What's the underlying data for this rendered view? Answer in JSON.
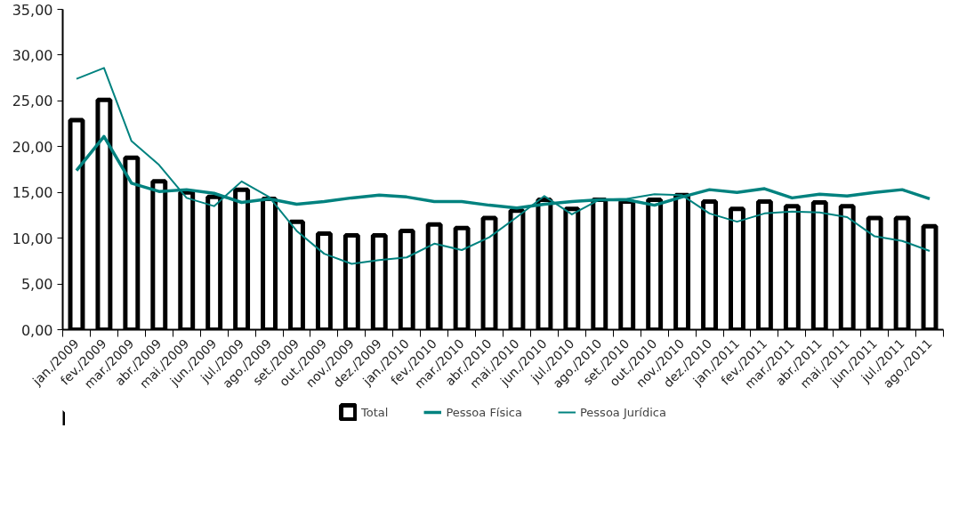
{
  "chart_data": {
    "type": "bar",
    "categories": [
      "jan./2009",
      "fev./2009",
      "mar./2009",
      "abr./2009",
      "mai./2009",
      "jun./2009",
      "jul./2009",
      "ago./2009",
      "set./2009",
      "out./2009",
      "nov./2009",
      "dez./2009",
      "jan./2010",
      "fev./2010",
      "mar./2010",
      "abr./2010",
      "mai./2010",
      "jun./2010",
      "jul./2010",
      "ago./2010",
      "set./2010",
      "out./2010",
      "nov./2010",
      "dez./2010",
      "jan./2011",
      "fev./2011",
      "mar./2011",
      "abr./2011",
      "mai./2011",
      "jun./2011",
      "jul./2011",
      "ago./2011"
    ],
    "series": [
      {
        "name": "Total",
        "color": "#000000",
        "values": [
          22.9,
          25.1,
          18.8,
          16.2,
          15.0,
          14.5,
          15.3,
          14.3,
          11.8,
          10.5,
          10.3,
          10.3,
          10.8,
          11.5,
          11.1,
          12.2,
          13.0,
          14.2,
          13.2,
          14.2,
          14.0,
          14.2,
          14.7,
          14.0,
          13.2,
          14.0,
          13.5,
          13.9,
          13.5,
          12.2,
          12.2,
          11.3
        ]
      },
      {
        "name": "Pessoa Física",
        "type": "line",
        "color": "#00827f",
        "values": [
          17.4,
          21.1,
          16.0,
          15.1,
          15.3,
          14.9,
          13.9,
          14.3,
          13.7,
          14.0,
          14.4,
          14.7,
          14.5,
          14.0,
          14.0,
          13.6,
          13.3,
          13.7,
          14.0,
          14.2,
          14.2,
          13.6,
          14.5,
          15.3,
          15.0,
          15.4,
          14.4,
          14.8,
          14.6,
          15.0,
          15.3,
          14.3
        ]
      },
      {
        "name": "Pessoa Jurídica",
        "type": "line",
        "color": "#00827f",
        "values": [
          27.4,
          28.6,
          20.6,
          18.0,
          14.4,
          13.5,
          16.2,
          14.5,
          10.8,
          8.3,
          7.2,
          7.6,
          7.9,
          9.4,
          8.7,
          10.1,
          12.3,
          14.6,
          12.6,
          14.2,
          14.3,
          14.8,
          14.7,
          12.7,
          11.8,
          12.7,
          12.9,
          12.8,
          12.3,
          10.2,
          9.7,
          8.6
        ]
      }
    ],
    "ylim": [
      0,
      35
    ],
    "yticks": [
      {
        "value": 0,
        "label": "0,00"
      },
      {
        "value": 5,
        "label": "5,00"
      },
      {
        "value": 10,
        "label": "10,00"
      },
      {
        "value": 15,
        "label": "15,00"
      },
      {
        "value": 20,
        "label": "20,00"
      },
      {
        "value": 25,
        "label": "25,00"
      },
      {
        "value": 30,
        "label": "30,00"
      },
      {
        "value": 35,
        "label": "35,00"
      }
    ],
    "grid": false,
    "legend": "bottom"
  }
}
